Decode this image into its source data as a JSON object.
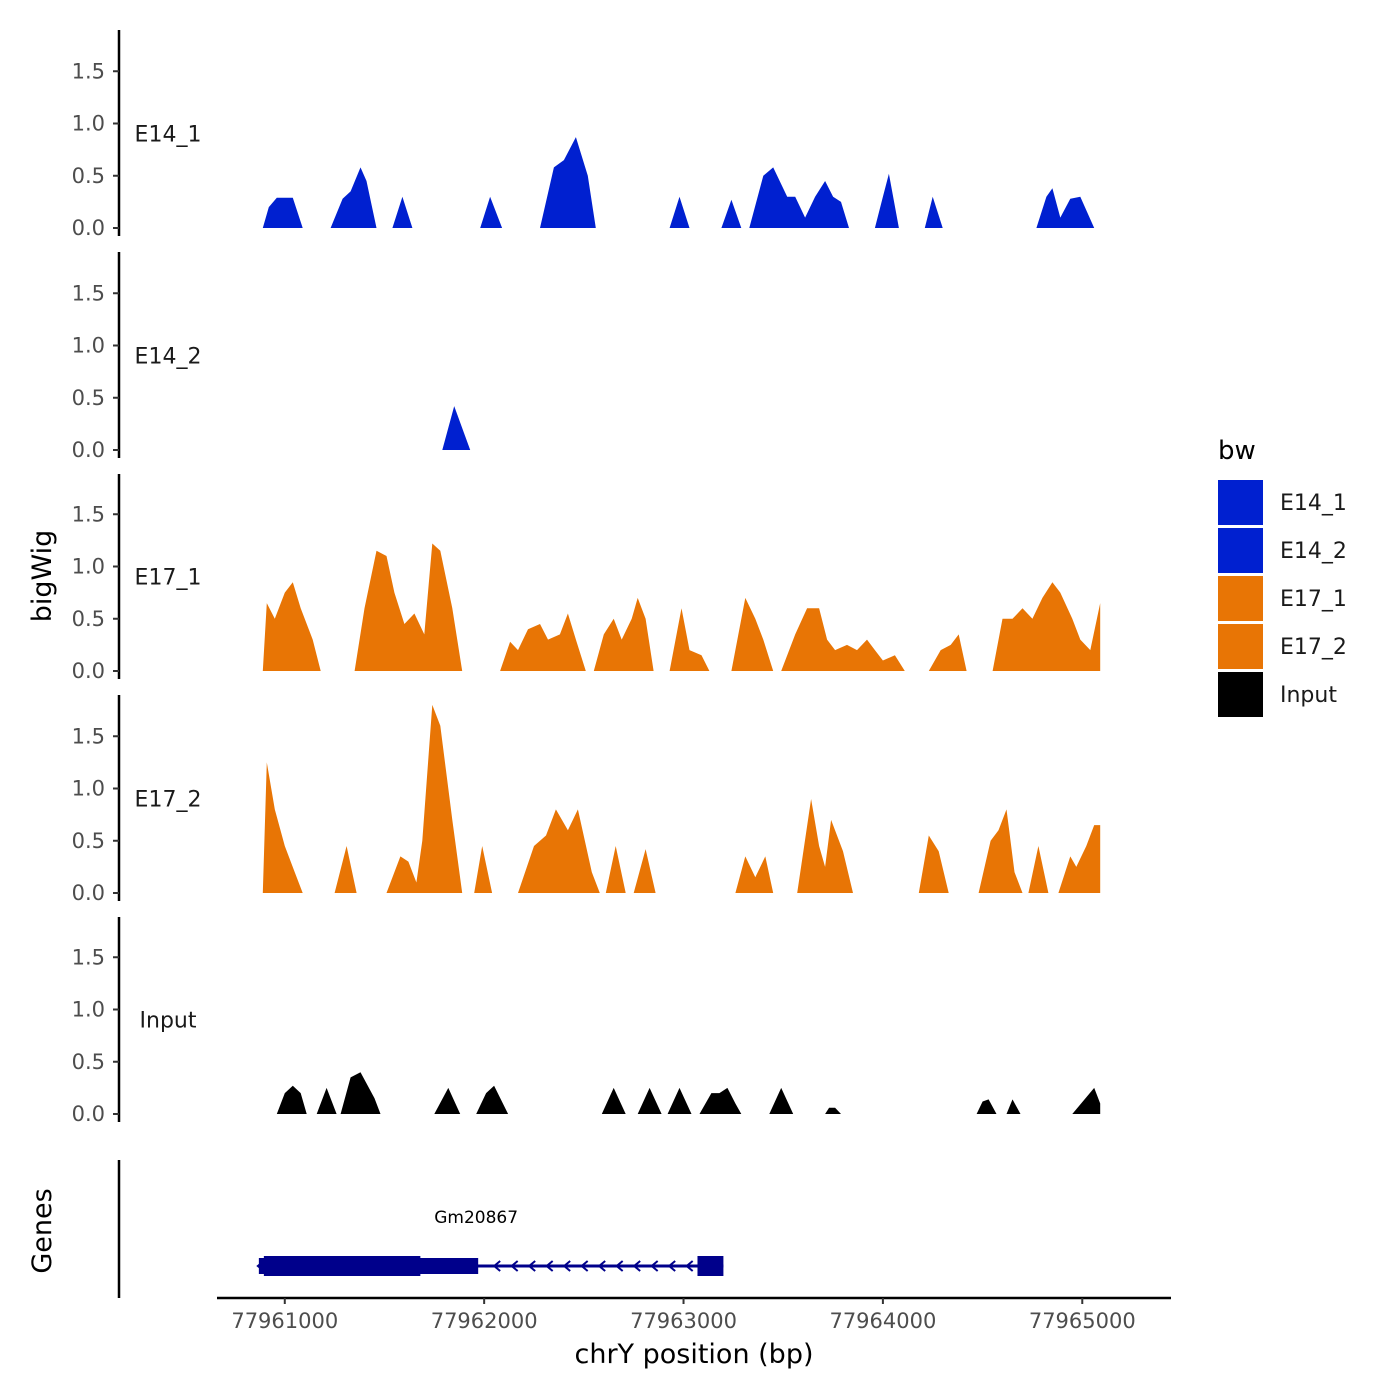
{
  "chart_data": {
    "type": "area",
    "y_axis_title": "bigWig",
    "x_axis_title": "chrY position (bp)",
    "y_ticks": [
      "0.0",
      "0.5",
      "1.0",
      "1.5"
    ],
    "y_tick_values": [
      0,
      0.5,
      1.0,
      1.5
    ],
    "y_range": [
      0,
      1.9
    ],
    "x_range": [
      77960650,
      77965440
    ],
    "x_ticks": [
      77961000,
      77962000,
      77963000,
      77964000,
      77965000
    ],
    "x_tick_labels": [
      "77961000",
      "77962000",
      "77963000",
      "77964000",
      "77965000"
    ],
    "legend": {
      "title": "bw",
      "items": [
        {
          "label": "E14_1",
          "color": "#0020d0"
        },
        {
          "label": "E14_2",
          "color": "#0020d0"
        },
        {
          "label": "E17_1",
          "color": "#e87505"
        },
        {
          "label": "E17_2",
          "color": "#e87505"
        },
        {
          "label": "Input",
          "color": "#000000"
        }
      ]
    },
    "tracks": [
      {
        "name": "E14_1",
        "color": "#0020d0",
        "points": [
          [
            77960890,
            0
          ],
          [
            77960920,
            0.2
          ],
          [
            77960960,
            0.29
          ],
          [
            77961040,
            0.29
          ],
          [
            77961090,
            0
          ],
          [
            77961230,
            0
          ],
          [
            77961290,
            0.28
          ],
          [
            77961330,
            0.35
          ],
          [
            77961380,
            0.58
          ],
          [
            77961410,
            0.45
          ],
          [
            77961460,
            0
          ],
          [
            77961540,
            0
          ],
          [
            77961590,
            0.3
          ],
          [
            77961640,
            0
          ],
          [
            77961980,
            0
          ],
          [
            77962030,
            0.3
          ],
          [
            77962090,
            0
          ],
          [
            77962280,
            0
          ],
          [
            77962350,
            0.58
          ],
          [
            77962400,
            0.65
          ],
          [
            77962460,
            0.87
          ],
          [
            77962520,
            0.5
          ],
          [
            77962560,
            0
          ],
          [
            77962930,
            0
          ],
          [
            77962980,
            0.3
          ],
          [
            77963030,
            0
          ],
          [
            77963190,
            0
          ],
          [
            77963240,
            0.27
          ],
          [
            77963290,
            0
          ],
          [
            77963330,
            0
          ],
          [
            77963400,
            0.5
          ],
          [
            77963450,
            0.58
          ],
          [
            77963520,
            0.3
          ],
          [
            77963560,
            0.3
          ],
          [
            77963610,
            0.1
          ],
          [
            77963660,
            0.3
          ],
          [
            77963710,
            0.45
          ],
          [
            77963750,
            0.3
          ],
          [
            77963790,
            0.25
          ],
          [
            77963830,
            0
          ],
          [
            77963960,
            0
          ],
          [
            77964000,
            0.3
          ],
          [
            77964030,
            0.52
          ],
          [
            77964080,
            0
          ],
          [
            77964210,
            0
          ],
          [
            77964250,
            0.3
          ],
          [
            77964300,
            0
          ],
          [
            77964770,
            0
          ],
          [
            77964820,
            0.3
          ],
          [
            77964850,
            0.38
          ],
          [
            77964890,
            0.1
          ],
          [
            77964940,
            0.28
          ],
          [
            77964990,
            0.3
          ],
          [
            77965060,
            0
          ]
        ]
      },
      {
        "name": "E14_2",
        "color": "#0020d0",
        "points": [
          [
            77961790,
            0
          ],
          [
            77961850,
            0.42
          ],
          [
            77961930,
            0
          ]
        ]
      },
      {
        "name": "E17_1",
        "color": "#e87505",
        "points": [
          [
            77960890,
            0
          ],
          [
            77960910,
            0.65
          ],
          [
            77960950,
            0.5
          ],
          [
            77961000,
            0.75
          ],
          [
            77961040,
            0.85
          ],
          [
            77961080,
            0.6
          ],
          [
            77961140,
            0.3
          ],
          [
            77961180,
            0
          ],
          [
            77961350,
            0
          ],
          [
            77961400,
            0.6
          ],
          [
            77961460,
            1.15
          ],
          [
            77961510,
            1.1
          ],
          [
            77961550,
            0.75
          ],
          [
            77961600,
            0.45
          ],
          [
            77961650,
            0.55
          ],
          [
            77961700,
            0.35
          ],
          [
            77961740,
            1.22
          ],
          [
            77961780,
            1.15
          ],
          [
            77961840,
            0.6
          ],
          [
            77961890,
            0
          ],
          [
            77962080,
            0
          ],
          [
            77962130,
            0.28
          ],
          [
            77962170,
            0.2
          ],
          [
            77962220,
            0.4
          ],
          [
            77962280,
            0.45
          ],
          [
            77962320,
            0.3
          ],
          [
            77962380,
            0.35
          ],
          [
            77962420,
            0.55
          ],
          [
            77962460,
            0.3
          ],
          [
            77962510,
            0
          ],
          [
            77962550,
            0
          ],
          [
            77962600,
            0.35
          ],
          [
            77962650,
            0.5
          ],
          [
            77962690,
            0.3
          ],
          [
            77962740,
            0.5
          ],
          [
            77962770,
            0.7
          ],
          [
            77962810,
            0.5
          ],
          [
            77962850,
            0
          ],
          [
            77962930,
            0
          ],
          [
            77962990,
            0.6
          ],
          [
            77963030,
            0.2
          ],
          [
            77963090,
            0.15
          ],
          [
            77963130,
            0
          ],
          [
            77963240,
            0
          ],
          [
            77963310,
            0.7
          ],
          [
            77963360,
            0.5
          ],
          [
            77963400,
            0.3
          ],
          [
            77963450,
            0
          ],
          [
            77963490,
            0
          ],
          [
            77963560,
            0.35
          ],
          [
            77963620,
            0.6
          ],
          [
            77963680,
            0.6
          ],
          [
            77963720,
            0.3
          ],
          [
            77963760,
            0.2
          ],
          [
            77963820,
            0.25
          ],
          [
            77963870,
            0.2
          ],
          [
            77963920,
            0.3
          ],
          [
            77963960,
            0.2
          ],
          [
            77964000,
            0.1
          ],
          [
            77964060,
            0.15
          ],
          [
            77964110,
            0
          ],
          [
            77964230,
            0
          ],
          [
            77964290,
            0.2
          ],
          [
            77964340,
            0.25
          ],
          [
            77964380,
            0.35
          ],
          [
            77964420,
            0
          ],
          [
            77964550,
            0
          ],
          [
            77964600,
            0.5
          ],
          [
            77964650,
            0.5
          ],
          [
            77964700,
            0.6
          ],
          [
            77964750,
            0.5
          ],
          [
            77964800,
            0.7
          ],
          [
            77964850,
            0.85
          ],
          [
            77964890,
            0.75
          ],
          [
            77964950,
            0.5
          ],
          [
            77964990,
            0.3
          ],
          [
            77965040,
            0.2
          ],
          [
            77965090,
            0.65
          ],
          [
            77965090,
            0
          ]
        ]
      },
      {
        "name": "E17_2",
        "color": "#e87505",
        "points": [
          [
            77960890,
            0
          ],
          [
            77960910,
            1.25
          ],
          [
            77960950,
            0.8
          ],
          [
            77961000,
            0.45
          ],
          [
            77961050,
            0.2
          ],
          [
            77961090,
            0
          ],
          [
            77961250,
            0
          ],
          [
            77961310,
            0.45
          ],
          [
            77961360,
            0
          ],
          [
            77961510,
            0
          ],
          [
            77961580,
            0.35
          ],
          [
            77961620,
            0.3
          ],
          [
            77961660,
            0.1
          ],
          [
            77961690,
            0.5
          ],
          [
            77961740,
            1.8
          ],
          [
            77961780,
            1.6
          ],
          [
            77961840,
            0.7
          ],
          [
            77961890,
            0
          ],
          [
            77961950,
            0
          ],
          [
            77961990,
            0.45
          ],
          [
            77962040,
            0
          ],
          [
            77962170,
            0
          ],
          [
            77962250,
            0.45
          ],
          [
            77962310,
            0.55
          ],
          [
            77962360,
            0.8
          ],
          [
            77962420,
            0.6
          ],
          [
            77962470,
            0.8
          ],
          [
            77962540,
            0.2
          ],
          [
            77962580,
            0
          ],
          [
            77962610,
            0
          ],
          [
            77962660,
            0.45
          ],
          [
            77962710,
            0
          ],
          [
            77962750,
            0
          ],
          [
            77962810,
            0.42
          ],
          [
            77962860,
            0
          ],
          [
            77963260,
            0
          ],
          [
            77963310,
            0.35
          ],
          [
            77963360,
            0.15
          ],
          [
            77963410,
            0.35
          ],
          [
            77963450,
            0
          ],
          [
            77963570,
            0
          ],
          [
            77963640,
            0.9
          ],
          [
            77963680,
            0.45
          ],
          [
            77963710,
            0.25
          ],
          [
            77963740,
            0.7
          ],
          [
            77963800,
            0.4
          ],
          [
            77963850,
            0
          ],
          [
            77964180,
            0
          ],
          [
            77964230,
            0.55
          ],
          [
            77964280,
            0.4
          ],
          [
            77964330,
            0
          ],
          [
            77964480,
            0
          ],
          [
            77964540,
            0.5
          ],
          [
            77964580,
            0.6
          ],
          [
            77964620,
            0.8
          ],
          [
            77964660,
            0.2
          ],
          [
            77964700,
            0
          ],
          [
            77964730,
            0
          ],
          [
            77964780,
            0.45
          ],
          [
            77964830,
            0
          ],
          [
            77964880,
            0
          ],
          [
            77964940,
            0.35
          ],
          [
            77964970,
            0.25
          ],
          [
            77965020,
            0.45
          ],
          [
            77965060,
            0.65
          ],
          [
            77965090,
            0.65
          ],
          [
            77965090,
            0
          ]
        ]
      },
      {
        "name": "Input",
        "color": "#000000",
        "points": [
          [
            77960960,
            0
          ],
          [
            77961000,
            0.2
          ],
          [
            77961040,
            0.27
          ],
          [
            77961080,
            0.2
          ],
          [
            77961110,
            0
          ],
          [
            77961160,
            0
          ],
          [
            77961210,
            0.25
          ],
          [
            77961260,
            0
          ],
          [
            77961280,
            0
          ],
          [
            77961330,
            0.35
          ],
          [
            77961380,
            0.4
          ],
          [
            77961450,
            0.15
          ],
          [
            77961480,
            0
          ],
          [
            77961750,
            0
          ],
          [
            77961820,
            0.25
          ],
          [
            77961880,
            0
          ],
          [
            77961960,
            0
          ],
          [
            77962010,
            0.2
          ],
          [
            77962050,
            0.27
          ],
          [
            77962120,
            0
          ],
          [
            77962590,
            0
          ],
          [
            77962650,
            0.25
          ],
          [
            77962710,
            0
          ],
          [
            77962770,
            0
          ],
          [
            77962830,
            0.25
          ],
          [
            77962890,
            0
          ],
          [
            77962920,
            0
          ],
          [
            77962980,
            0.25
          ],
          [
            77963040,
            0
          ],
          [
            77963080,
            0
          ],
          [
            77963140,
            0.2
          ],
          [
            77963180,
            0.2
          ],
          [
            77963220,
            0.25
          ],
          [
            77963260,
            0.1
          ],
          [
            77963290,
            0
          ],
          [
            77963430,
            0
          ],
          [
            77963490,
            0.25
          ],
          [
            77963550,
            0
          ],
          [
            77963710,
            0
          ],
          [
            77963730,
            0.06
          ],
          [
            77963760,
            0.06
          ],
          [
            77963790,
            0
          ],
          [
            77964470,
            0
          ],
          [
            77964500,
            0.12
          ],
          [
            77964530,
            0.14
          ],
          [
            77964570,
            0
          ],
          [
            77964620,
            0
          ],
          [
            77964650,
            0.14
          ],
          [
            77964690,
            0
          ],
          [
            77964950,
            0
          ],
          [
            77965060,
            0.25
          ],
          [
            77965090,
            0.1
          ],
          [
            77965090,
            0
          ]
        ]
      }
    ],
    "genes_track": {
      "title": "Genes",
      "gene": {
        "name": "Gm20867",
        "start": 77960870,
        "end": 77963200,
        "strand": "-",
        "utr_start": 77960870,
        "exons": [
          [
            77960870,
            77961970
          ],
          [
            77963070,
            77963200
          ]
        ],
        "color": "#00008b"
      }
    }
  }
}
